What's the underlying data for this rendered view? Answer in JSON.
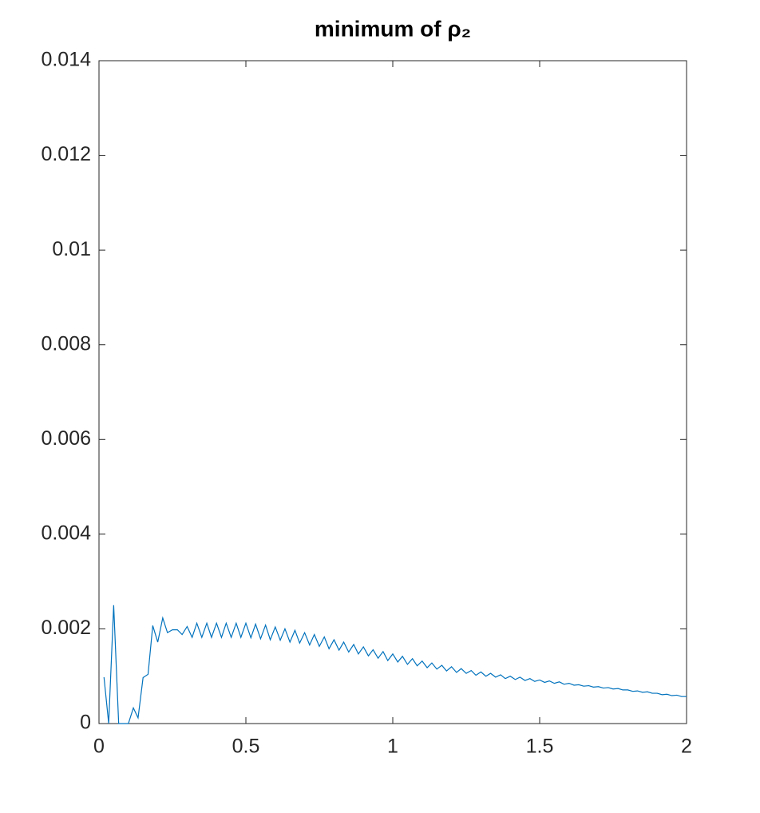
{
  "chart_data": {
    "type": "line",
    "title": "minimum of ρ₂",
    "x": [
      0.017,
      0.033,
      0.05,
      0.067,
      0.083,
      0.1,
      0.117,
      0.133,
      0.15,
      0.167,
      0.183,
      0.2,
      0.217,
      0.233,
      0.25,
      0.267,
      0.283,
      0.3,
      0.317,
      0.333,
      0.35,
      0.367,
      0.383,
      0.4,
      0.417,
      0.433,
      0.45,
      0.467,
      0.483,
      0.5,
      0.517,
      0.533,
      0.55,
      0.567,
      0.583,
      0.6,
      0.617,
      0.633,
      0.65,
      0.667,
      0.683,
      0.7,
      0.717,
      0.733,
      0.75,
      0.767,
      0.783,
      0.8,
      0.817,
      0.833,
      0.85,
      0.867,
      0.883,
      0.9,
      0.917,
      0.933,
      0.95,
      0.967,
      0.983,
      1,
      1.017,
      1.033,
      1.05,
      1.067,
      1.083,
      1.1,
      1.117,
      1.133,
      1.15,
      1.167,
      1.183,
      1.2,
      1.217,
      1.233,
      1.25,
      1.267,
      1.283,
      1.3,
      1.317,
      1.333,
      1.35,
      1.367,
      1.383,
      1.4,
      1.417,
      1.433,
      1.45,
      1.467,
      1.483,
      1.5,
      1.517,
      1.533,
      1.55,
      1.567,
      1.583,
      1.6,
      1.617,
      1.633,
      1.65,
      1.667,
      1.683,
      1.7,
      1.717,
      1.733,
      1.75,
      1.767,
      1.783,
      1.8,
      1.817,
      1.833,
      1.85,
      1.867,
      1.883,
      1.9,
      1.917,
      1.933,
      1.95,
      1.967,
      1.983,
      2
    ],
    "series": [
      {
        "color": "#0072bd",
        "values": [
          0.00098,
          0,
          0.0025,
          0,
          0,
          0,
          0.00033,
          0.00012,
          0.00097,
          0.00104,
          0.00207,
          0.00172,
          0.00223,
          0.00192,
          0.00198,
          0.00198,
          0.00188,
          0.00205,
          0.00182,
          0.00212,
          0.00182,
          0.00212,
          0.00182,
          0.00212,
          0.00182,
          0.00212,
          0.00182,
          0.00212,
          0.00182,
          0.00212,
          0.00181,
          0.0021,
          0.00179,
          0.00208,
          0.00177,
          0.00204,
          0.00176,
          0.002,
          0.00172,
          0.00197,
          0.0017,
          0.00192,
          0.00166,
          0.00188,
          0.00163,
          0.00183,
          0.00158,
          0.00177,
          0.00155,
          0.00172,
          0.00151,
          0.00167,
          0.00147,
          0.00162,
          0.00143,
          0.00156,
          0.00138,
          0.00152,
          0.00133,
          0.00147,
          0.0013,
          0.00142,
          0.00125,
          0.00137,
          0.00122,
          0.00132,
          0.00118,
          0.00128,
          0.00115,
          0.00123,
          0.00111,
          0.0012,
          0.00108,
          0.00116,
          0.00106,
          0.00112,
          0.00102,
          0.00109,
          0.001,
          0.00106,
          0.00098,
          0.00103,
          0.00095,
          0.001,
          0.00093,
          0.00098,
          0.00091,
          0.00095,
          0.00089,
          0.00092,
          0.00087,
          0.0009,
          0.00085,
          0.00088,
          0.00083,
          0.00085,
          0.00081,
          0.00082,
          0.00079,
          0.0008,
          0.00077,
          0.00078,
          0.00075,
          0.00076,
          0.00073,
          0.00074,
          0.00071,
          0.00071,
          0.00068,
          0.00069,
          0.00066,
          0.00067,
          0.00064,
          0.00064,
          0.00061,
          0.00062,
          0.00059,
          0.0006,
          0.00057,
          0.00057
        ]
      }
    ],
    "xlim": [
      0,
      2
    ],
    "xticks": [
      0,
      0.5,
      1,
      1.5,
      2
    ],
    "ylim": [
      0,
      0.014
    ],
    "yticks": [
      0,
      0.002,
      0.004,
      0.006,
      0.008,
      0.01,
      0.012,
      0.014
    ]
  }
}
